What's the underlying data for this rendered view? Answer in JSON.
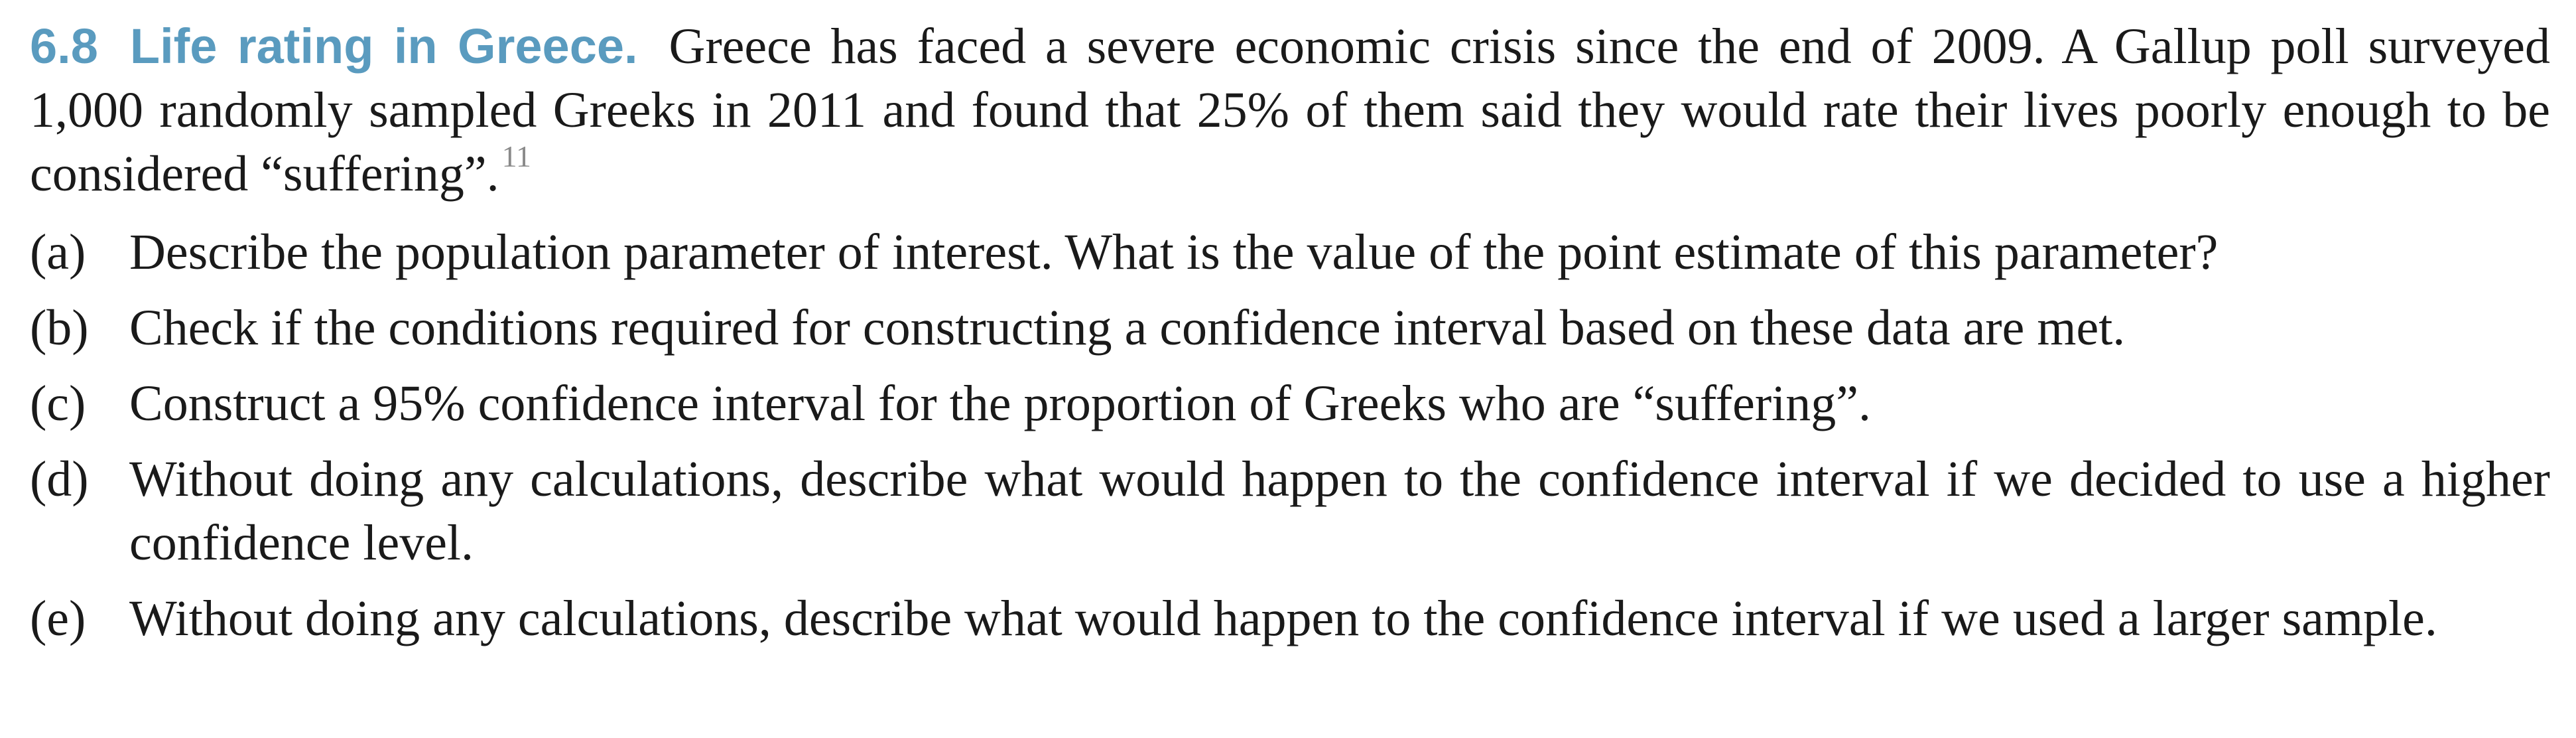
{
  "exercise": {
    "number": "6.8",
    "title": "Life rating in Greece.",
    "intro": "Greece has faced a severe economic crisis since the end of 2009. A Gallup poll surveyed 1,000 randomly sampled Greeks in 2011 and found that 25% of them said they would rate their lives poorly enough to be considered “suffering”.",
    "footnote": "11"
  },
  "parts": [
    {
      "label": "(a)",
      "text": "Describe the population parameter of interest. What is the value of the point estimate of this parameter?"
    },
    {
      "label": "(b)",
      "text": "Check if the conditions required for constructing a confidence interval based on these data are met."
    },
    {
      "label": "(c)",
      "text": "Construct a 95% confidence interval for the proportion of Greeks who are “suffering”."
    },
    {
      "label": "(d)",
      "text": "Without doing any calculations, describe what would happen to the confidence interval if we decided to use a higher confidence level."
    },
    {
      "label": "(e)",
      "text": "Without doing any calculations, describe what would happen to the confidence interval if we used a larger sample."
    }
  ]
}
